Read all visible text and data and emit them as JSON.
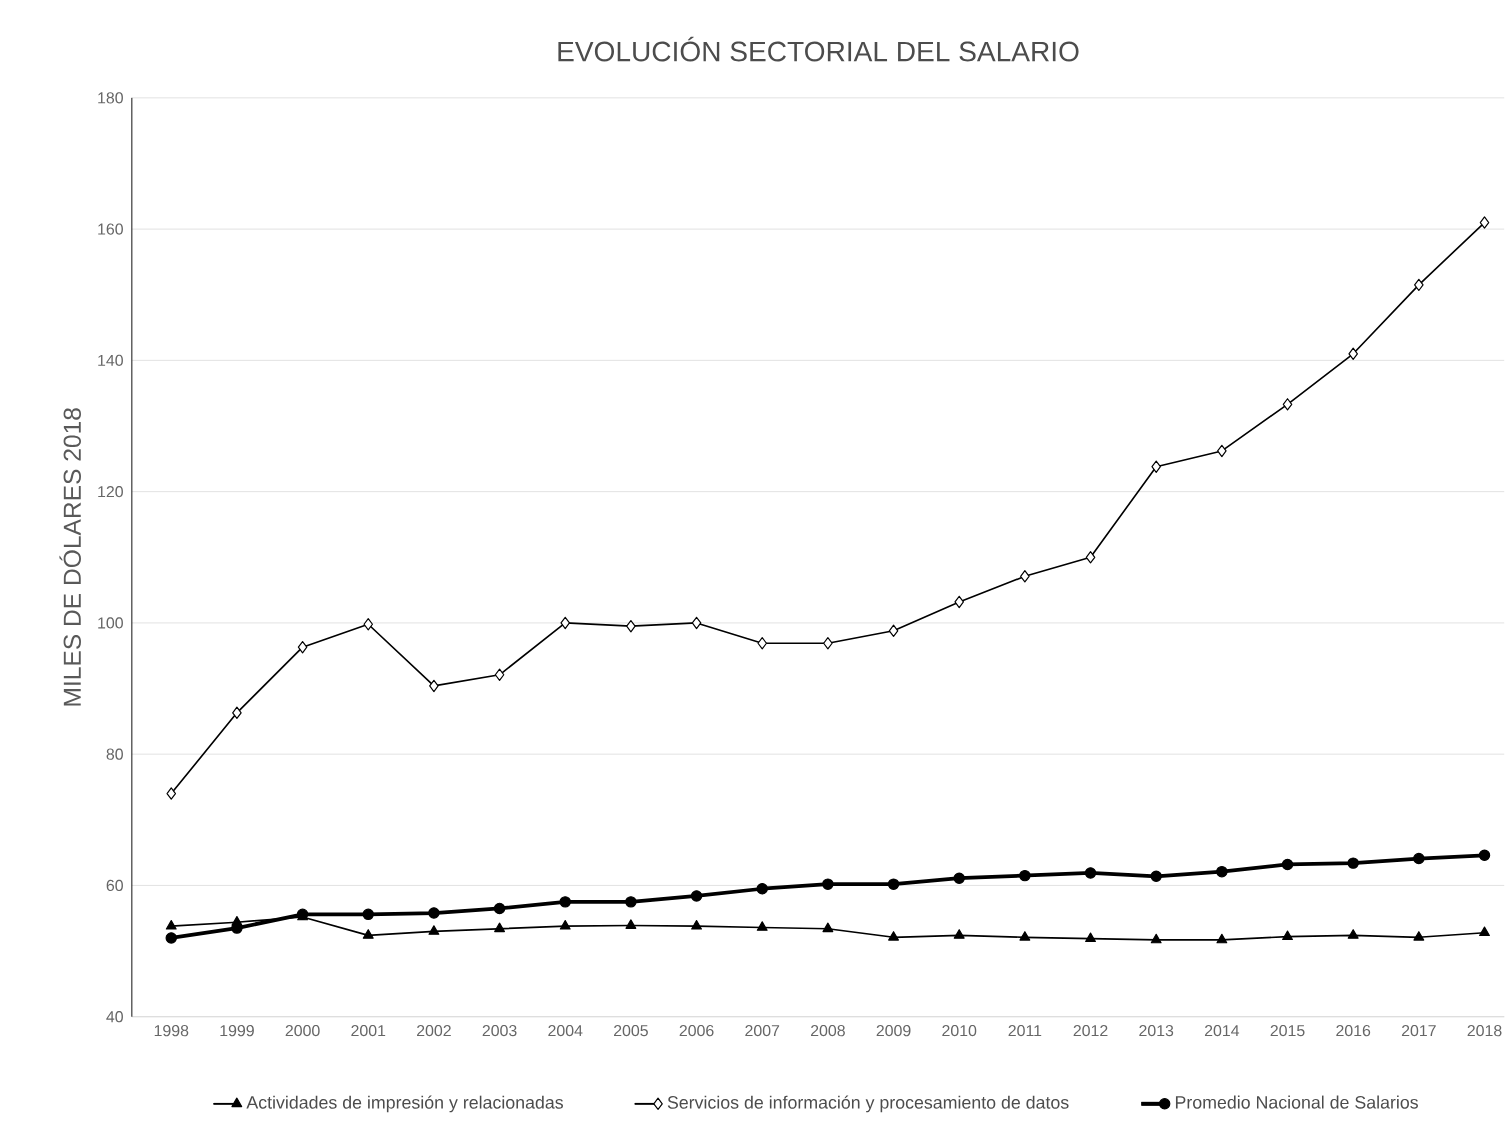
{
  "chart_data": {
    "type": "line",
    "title": "EVOLUCIÓN SECTORIAL DEL SALARIO",
    "ylabel": "MILES DE DÓLARES 2018",
    "categories": [
      "1998",
      "1999",
      "2000",
      "2001",
      "2002",
      "2003",
      "2004",
      "2005",
      "2006",
      "2007",
      "2008",
      "2009",
      "2010",
      "2011",
      "2012",
      "2013",
      "2014",
      "2015",
      "2016",
      "2017",
      "2018"
    ],
    "series": [
      {
        "name": "Actividades de impresión y relacionadas",
        "color": "#000000",
        "marker": "triangle",
        "values": [
          53.8,
          54.4,
          55.2,
          52.4,
          53,
          53.4,
          53.8,
          53.9,
          53.8,
          53.6,
          53.4,
          52.1,
          52.4,
          52.1,
          51.9,
          51.7,
          51.7,
          52.2,
          52.4,
          52.1,
          52.8
        ]
      },
      {
        "name": "Servicios de información y procesamiento de datos",
        "color": "#000000",
        "marker": "diamond",
        "values": [
          74,
          86.3,
          96.3,
          99.8,
          90.4,
          92.1,
          100,
          99.5,
          100,
          96.9,
          96.9,
          98.8,
          103.2,
          107.1,
          110,
          123.8,
          126.2,
          133.3,
          141,
          151.5,
          161
        ]
      },
      {
        "name": "Promedio Nacional de Salarios",
        "color": "#000000",
        "marker": "circle",
        "values": [
          52,
          53.5,
          55.6,
          55.6,
          55.8,
          56.5,
          57.5,
          57.5,
          58.4,
          59.5,
          60.2,
          60.2,
          61.1,
          61.5,
          61.9,
          61.4,
          62.1,
          63.2,
          63.4,
          64.1,
          64.6
        ]
      }
    ],
    "ylim": [
      40,
      180
    ],
    "yticks": [
      40,
      60,
      80,
      100,
      120,
      140,
      160,
      180
    ],
    "grid": "y",
    "legend": "bottom",
    "line_style": "solid"
  }
}
